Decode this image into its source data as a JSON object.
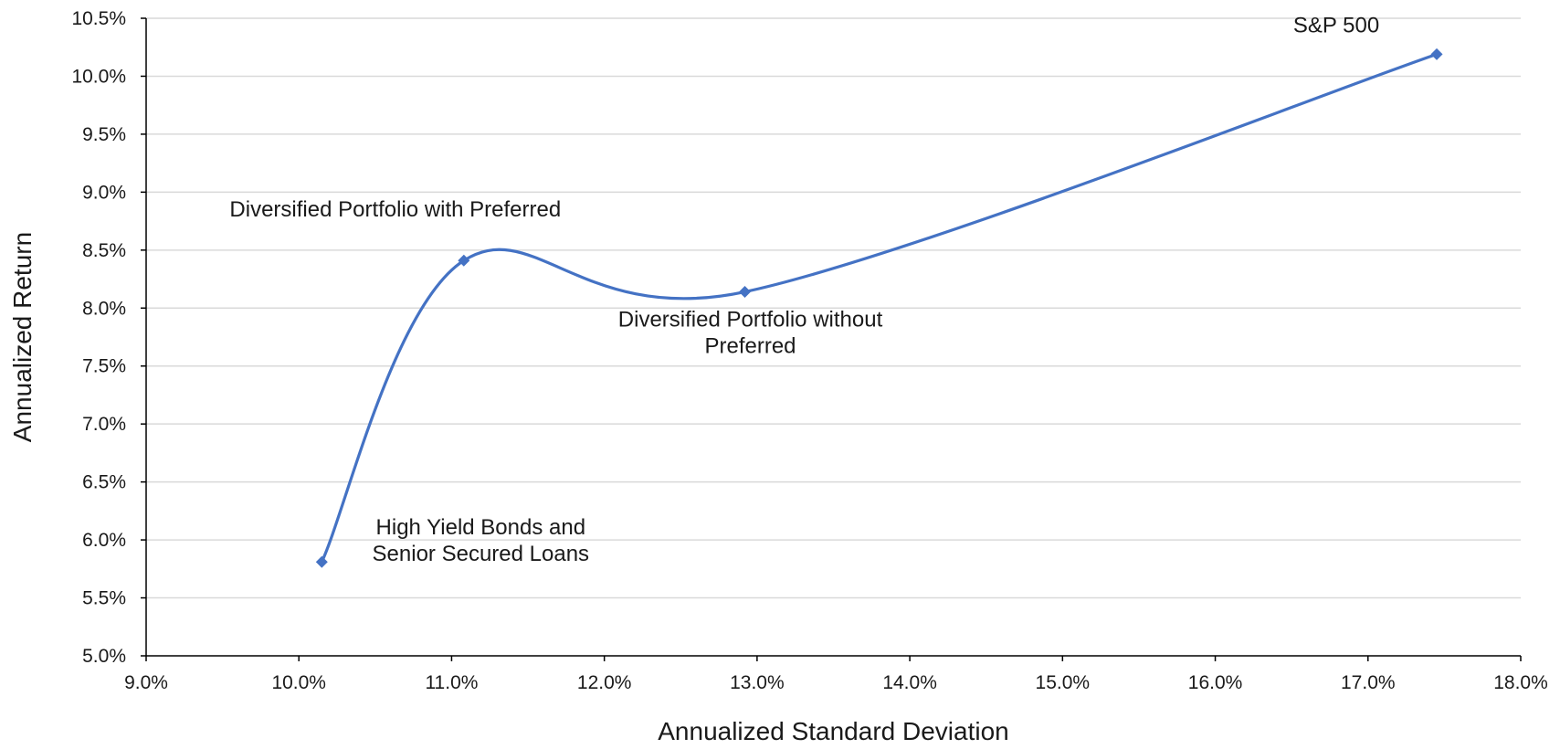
{
  "chart_data": {
    "type": "scatter",
    "title": "",
    "xlabel": "Annualized Standard Deviation",
    "ylabel": "Annualized Return",
    "xlim": [
      9.0,
      18.0
    ],
    "ylim": [
      5.0,
      10.5
    ],
    "x_ticks": [
      "9.0%",
      "10.0%",
      "11.0%",
      "12.0%",
      "13.0%",
      "14.0%",
      "15.0%",
      "16.0%",
      "17.0%",
      "18.0%"
    ],
    "y_ticks": [
      "5.0%",
      "5.5%",
      "6.0%",
      "6.5%",
      "7.0%",
      "7.5%",
      "8.0%",
      "8.5%",
      "9.0%",
      "9.5%",
      "10.0%",
      "10.5%"
    ],
    "grid": "horizontal",
    "line_style": "smoothed",
    "series_color": "#4472C4",
    "points": [
      {
        "x": 10.15,
        "y": 5.81,
        "label": [
          "High Yield Bonds and",
          "Senior Secured Loans"
        ]
      },
      {
        "x": 11.08,
        "y": 8.41,
        "label": [
          "Diversified Portfolio with Preferred"
        ]
      },
      {
        "x": 12.92,
        "y": 8.14,
        "label": [
          "Diversified Portfolio without",
          "Preferred"
        ]
      },
      {
        "x": 17.45,
        "y": 10.19,
        "label": [
          "S&P 500"
        ]
      }
    ]
  }
}
